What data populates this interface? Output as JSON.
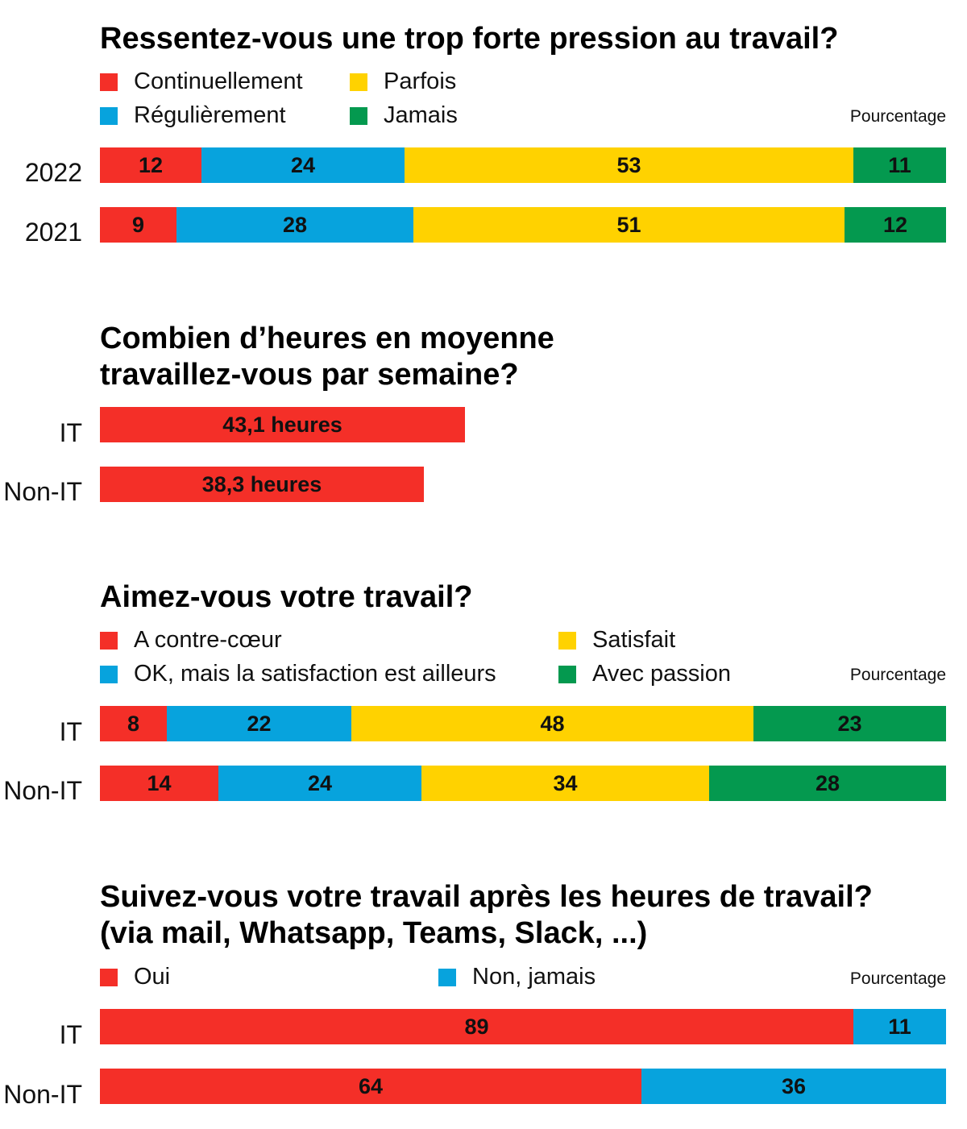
{
  "colors": {
    "red": "#f42f28",
    "blue": "#07a3dd",
    "yellow": "#ffd200",
    "green": "#04994f"
  },
  "chart_data": [
    {
      "type": "bar",
      "orientation": "horizontal",
      "stacked": true,
      "title": "Ressentez-vous une trop forte pression au travail?",
      "unit_label": "Pourcentage",
      "categories": [
        "2022",
        "2021"
      ],
      "series": [
        {
          "name": "Continuellement",
          "color": "#f42f28",
          "values": [
            12,
            9
          ]
        },
        {
          "name": "Régulièrement",
          "color": "#07a3dd",
          "values": [
            24,
            28
          ]
        },
        {
          "name": "Parfois",
          "color": "#ffd200",
          "values": [
            53,
            51
          ]
        },
        {
          "name": "Jamais",
          "color": "#04994f",
          "values": [
            11,
            12
          ]
        }
      ],
      "xlim": [
        0,
        100
      ]
    },
    {
      "type": "bar",
      "orientation": "horizontal",
      "title": "Combien d’heures en moyenne travaillez-vous par semaine?",
      "title_lines": [
        "Combien d’heures en moyenne",
        "travaillez-vous par semaine?"
      ],
      "categories": [
        "IT",
        "Non-IT"
      ],
      "values": [
        43.1,
        38.3
      ],
      "data_labels": [
        "43,1 heures",
        "38,3 heures"
      ],
      "color": "#f42f28",
      "xlim": [
        0,
        100
      ]
    },
    {
      "type": "bar",
      "orientation": "horizontal",
      "stacked": true,
      "title": "Aimez-vous votre travail?",
      "unit_label": "Pourcentage",
      "categories": [
        "IT",
        "Non-IT"
      ],
      "series": [
        {
          "name": "A contre-cœur",
          "color": "#f42f28",
          "values": [
            8,
            14
          ]
        },
        {
          "name": "OK, mais la satisfaction est ailleurs",
          "color": "#07a3dd",
          "values": [
            22,
            24
          ]
        },
        {
          "name": "Satisfait",
          "color": "#ffd200",
          "values": [
            48,
            34
          ]
        },
        {
          "name": "Avec passion",
          "color": "#04994f",
          "values": [
            23,
            28
          ]
        }
      ],
      "xlim": [
        0,
        100
      ]
    },
    {
      "type": "bar",
      "orientation": "horizontal",
      "stacked": true,
      "title": "Suivez-vous votre travail après les heures de travail? (via mail, Whatsapp, Teams, Slack, ...)",
      "title_lines": [
        "Suivez-vous votre travail après les heures de travail?",
        "(via mail, Whatsapp, Teams, Slack, ...)"
      ],
      "unit_label": "Pourcentage",
      "categories": [
        "IT",
        "Non-IT"
      ],
      "series": [
        {
          "name": "Oui",
          "color": "#f42f28",
          "values": [
            89,
            64
          ]
        },
        {
          "name": "Non, jamais",
          "color": "#07a3dd",
          "values": [
            11,
            36
          ]
        }
      ],
      "xlim": [
        0,
        100
      ]
    }
  ]
}
